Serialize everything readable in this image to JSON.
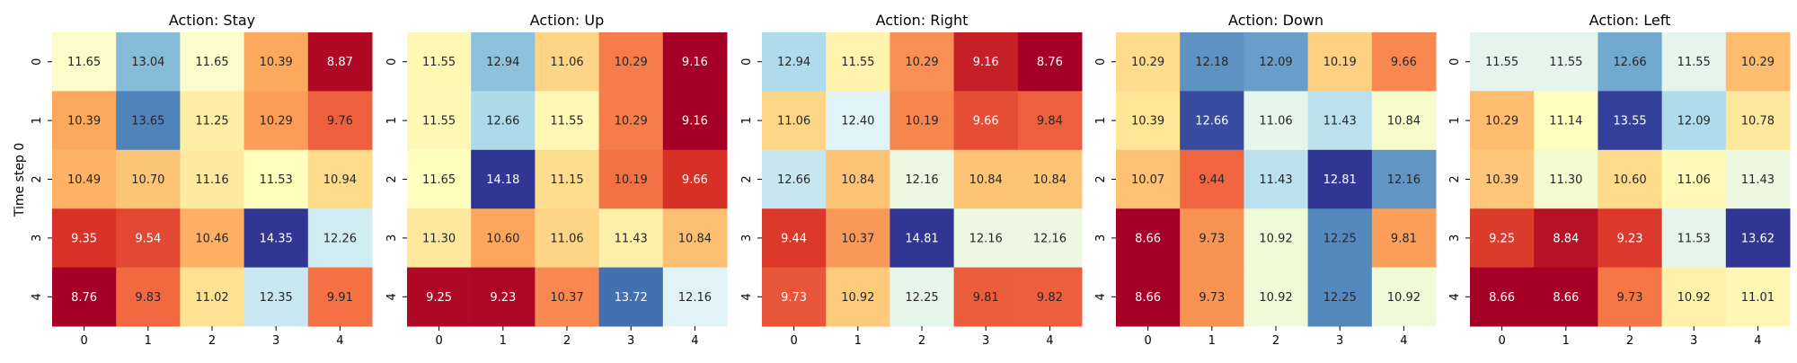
{
  "figure": {
    "ylabel": "Time step 0"
  },
  "chart_data": [
    {
      "type": "heatmap",
      "title": "Action: Stay",
      "x_ticks": [
        "0",
        "1",
        "2",
        "3",
        "4"
      ],
      "y_ticks": [
        "0",
        "1",
        "2",
        "3",
        "4"
      ],
      "values": [
        [
          11.65,
          13.04,
          11.65,
          10.39,
          8.87
        ],
        [
          10.39,
          13.65,
          11.25,
          10.29,
          9.76
        ],
        [
          10.49,
          10.7,
          11.16,
          11.53,
          10.94
        ],
        [
          9.35,
          9.54,
          10.46,
          14.35,
          12.26
        ],
        [
          8.76,
          9.83,
          11.02,
          12.35,
          9.91
        ]
      ]
    },
    {
      "type": "heatmap",
      "title": "Action: Up",
      "x_ticks": [
        "0",
        "1",
        "2",
        "3",
        "4"
      ],
      "y_ticks": [
        "0",
        "1",
        "2",
        "3",
        "4"
      ],
      "values": [
        [
          11.55,
          12.94,
          11.06,
          10.29,
          9.16
        ],
        [
          11.55,
          12.66,
          11.55,
          10.29,
          9.16
        ],
        [
          11.65,
          14.18,
          11.15,
          10.19,
          9.66
        ],
        [
          11.3,
          10.6,
          11.06,
          11.43,
          10.84
        ],
        [
          9.25,
          9.23,
          10.37,
          13.72,
          12.16
        ]
      ]
    },
    {
      "type": "heatmap",
      "title": "Action: Right",
      "x_ticks": [
        "0",
        "1",
        "2",
        "3",
        "4"
      ],
      "y_ticks": [
        "0",
        "1",
        "2",
        "3",
        "4"
      ],
      "values": [
        [
          12.94,
          11.55,
          10.29,
          9.16,
          8.76
        ],
        [
          11.06,
          12.4,
          10.19,
          9.66,
          9.84
        ],
        [
          12.66,
          10.84,
          12.16,
          10.84,
          10.84
        ],
        [
          9.44,
          10.37,
          14.81,
          12.16,
          12.16
        ],
        [
          9.73,
          10.92,
          12.25,
          9.81,
          9.82
        ]
      ]
    },
    {
      "type": "heatmap",
      "title": "Action: Down",
      "x_ticks": [
        "0",
        "1",
        "2",
        "3",
        "4"
      ],
      "y_ticks": [
        "0",
        "1",
        "2",
        "3",
        "4"
      ],
      "values": [
        [
          10.29,
          12.18,
          12.09,
          10.19,
          9.66
        ],
        [
          10.39,
          12.66,
          11.06,
          11.43,
          10.84
        ],
        [
          10.07,
          9.44,
          11.43,
          12.81,
          12.16
        ],
        [
          8.66,
          9.73,
          10.92,
          12.25,
          9.81
        ],
        [
          8.66,
          9.73,
          10.92,
          12.25,
          10.92
        ]
      ]
    },
    {
      "type": "heatmap",
      "title": "Action: Left",
      "x_ticks": [
        "0",
        "1",
        "2",
        "3",
        "4"
      ],
      "y_ticks": [
        "0",
        "1",
        "2",
        "3",
        "4"
      ],
      "values": [
        [
          11.55,
          11.55,
          12.66,
          11.55,
          10.29
        ],
        [
          10.29,
          11.14,
          13.55,
          12.09,
          10.78
        ],
        [
          10.39,
          11.3,
          10.6,
          11.06,
          11.43
        ],
        [
          9.25,
          8.84,
          9.23,
          11.53,
          13.62
        ],
        [
          8.66,
          8.66,
          9.73,
          10.92,
          11.01
        ]
      ]
    }
  ],
  "colormap": [
    "#a50026",
    "#d73027",
    "#f46d43",
    "#fdae61",
    "#fee090",
    "#ffffbf",
    "#e0f3f8",
    "#abd9e9",
    "#74add1",
    "#4575b4",
    "#313695"
  ]
}
